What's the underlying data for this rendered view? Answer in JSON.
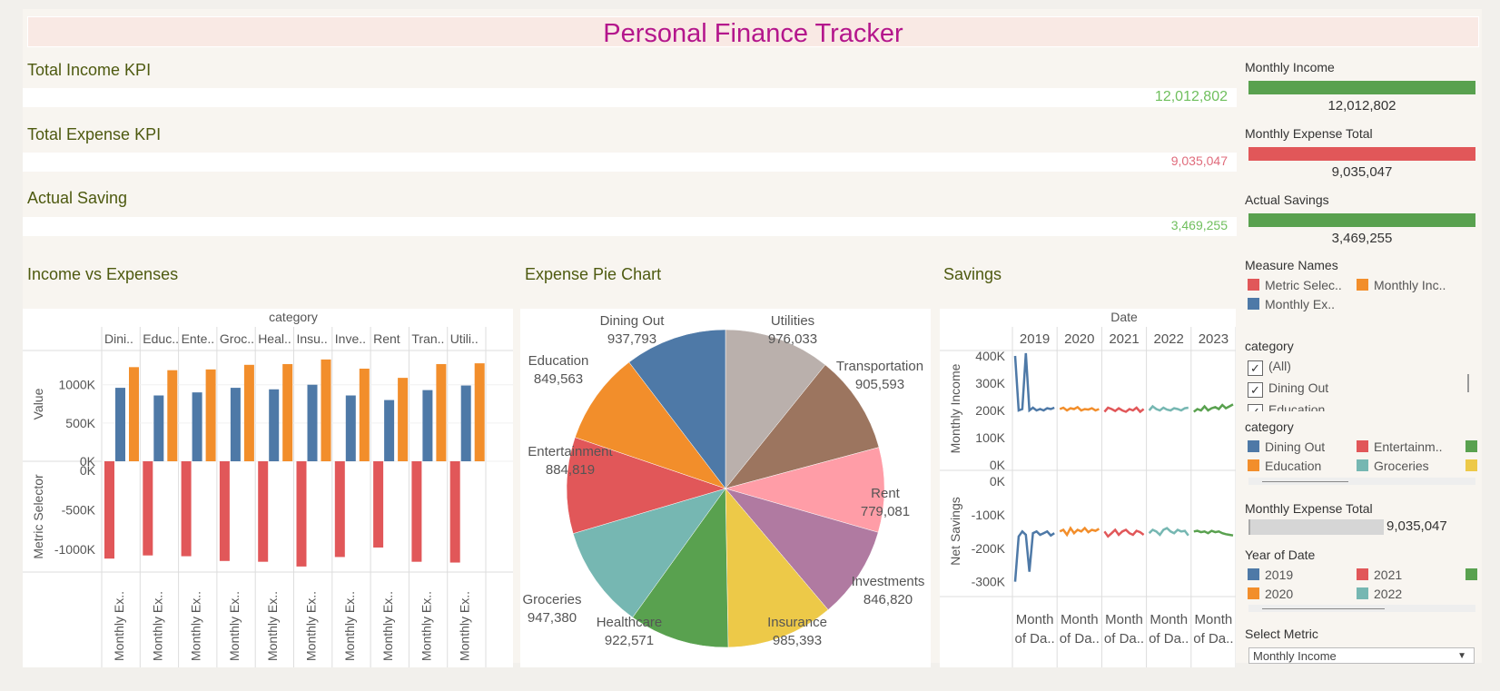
{
  "title": "Personal Finance Tracker",
  "kpis": [
    {
      "label": "Total Income KPI",
      "value": "12,012,802",
      "color": "#6fbf5d"
    },
    {
      "label": "Total Expense KPI",
      "value": "9,035,047",
      "color": "#e06c7c"
    },
    {
      "label": "Actual Saving",
      "value": "3,469,255",
      "color": "#6fbf5d"
    }
  ],
  "sections": {
    "income_vs_expenses": "Income vs Expenses",
    "expense_pie": "Expense Pie Chart",
    "savings": "Savings"
  },
  "sidebar": {
    "monthly_income": {
      "title": "Monthly Income",
      "value": "12,012,802",
      "color": "#59a14f"
    },
    "monthly_expense": {
      "title": "Monthly Expense Total",
      "value": "9,035,047",
      "color": "#e15759"
    },
    "actual_savings": {
      "title": "Actual Savings",
      "value": "3,469,255",
      "color": "#59a14f"
    },
    "measure_names": {
      "title": "Measure Names",
      "items": [
        {
          "label": "Metric Selec..",
          "color": "#e15759"
        },
        {
          "label": "Monthly Inc..",
          "color": "#f28e2b"
        },
        {
          "label": "Monthly Ex..",
          "color": "#4e79a7"
        }
      ]
    },
    "category_filter": {
      "title": "category",
      "items": [
        "(All)",
        "Dining Out",
        "Education"
      ]
    },
    "category_legend": {
      "title": "category",
      "items": [
        {
          "label": "Dining Out",
          "color": "#4e79a7"
        },
        {
          "label": "Entertainm..",
          "color": "#e15759"
        },
        {
          "label": "",
          "color": "#59a14f"
        },
        {
          "label": "Education",
          "color": "#f28e2b"
        },
        {
          "label": "Groceries",
          "color": "#76b7b2"
        },
        {
          "label": "",
          "color": "#edc948"
        }
      ]
    },
    "expense_slider": {
      "title": "Monthly Expense Total",
      "value": "9,035,047"
    },
    "year_legend": {
      "title": "Year of Date",
      "items": [
        {
          "label": "2019",
          "color": "#4e79a7"
        },
        {
          "label": "2021",
          "color": "#e15759"
        },
        {
          "label": "",
          "color": "#59a14f"
        },
        {
          "label": "2020",
          "color": "#f28e2b"
        },
        {
          "label": "2022",
          "color": "#76b7b2"
        }
      ]
    },
    "select_metric": {
      "title": "Select Metric",
      "value": "Monthly Income"
    }
  },
  "chart_data": [
    {
      "type": "bar",
      "title": "Income vs Expenses",
      "column_header": "category",
      "categories": [
        "Dini..",
        "Educ..",
        "Ente..",
        "Groc..",
        "Heal..",
        "Insu..",
        "Inve..",
        "Rent",
        "Tran..",
        "Utili.."
      ],
      "x_labels": [
        "Monthly Ex..",
        "Monthly Ex..",
        "Monthly Ex..",
        "Monthly Ex..",
        "Monthly Ex..",
        "Monthly Ex..",
        "Monthly Ex..",
        "Monthly Ex..",
        "Monthly Ex..",
        "Monthly Ex.."
      ],
      "top": {
        "ylabel": "Value",
        "yticks": [
          "1000K",
          "500K",
          "0K"
        ],
        "ylim": [
          0,
          1400000
        ],
        "series": [
          {
            "name": "Monthly Ex..",
            "color": "#4e79a7",
            "values": [
              960000,
              860000,
              900000,
              960000,
              940000,
              1000000,
              860000,
              800000,
              930000,
              990000
            ]
          },
          {
            "name": "Monthly Inc..",
            "color": "#f28e2b",
            "values": [
              1230000,
              1190000,
              1200000,
              1260000,
              1270000,
              1330000,
              1210000,
              1090000,
              1270000,
              1280000
            ]
          }
        ]
      },
      "bottom": {
        "ylabel": "Metric Selector",
        "yticks": [
          "0K",
          "-500K",
          "-1000K"
        ],
        "ylim": [
          -1400000,
          0
        ],
        "series": [
          {
            "name": "Metric Selec..",
            "color": "#e15759",
            "values": [
              -1230000,
              -1190000,
              -1200000,
              -1260000,
              -1270000,
              -1330000,
              -1210000,
              -1090000,
              -1270000,
              -1280000
            ]
          }
        ]
      }
    },
    {
      "type": "pie",
      "title": "Expense Pie Chart",
      "slices": [
        {
          "label": "Utilities",
          "value": 976033,
          "display": "976,033",
          "color": "#bab0ac"
        },
        {
          "label": "Transportation",
          "value": 905593,
          "display": "905,593",
          "color": "#9c755f"
        },
        {
          "label": "Rent",
          "value": 779081,
          "display": "779,081",
          "color": "#ff9da7"
        },
        {
          "label": "Investments",
          "value": 846820,
          "display": "846,820",
          "color": "#b07aa1"
        },
        {
          "label": "Insurance",
          "value": 985393,
          "display": "985,393",
          "color": "#edc948"
        },
        {
          "label": "Healthcare",
          "value": 922571,
          "display": "922,571",
          "color": "#59a14f"
        },
        {
          "label": "Groceries",
          "value": 947380,
          "display": "947,380",
          "color": "#76b7b2"
        },
        {
          "label": "Entertainment",
          "value": 884819,
          "display": "884,819",
          "color": "#e15759"
        },
        {
          "label": "Education",
          "value": 849563,
          "display": "849,563",
          "color": "#f28e2b"
        },
        {
          "label": "Dining Out",
          "value": 937793,
          "display": "937,793",
          "color": "#4e79a7"
        }
      ]
    },
    {
      "type": "line",
      "title": "Savings",
      "column_header": "Date",
      "years": [
        "2019",
        "2020",
        "2021",
        "2022",
        "2023"
      ],
      "colors": [
        "#4e79a7",
        "#f28e2b",
        "#e15759",
        "#76b7b2",
        "#59a14f"
      ],
      "x_label": "Month of Da..",
      "income": {
        "ylabel": "Monthly Income",
        "yticks": [
          "400K",
          "300K",
          "200K",
          "100K",
          "0K"
        ],
        "ylim": [
          0,
          400000
        ],
        "series": [
          [
            400000,
            200000,
            205000,
            410000,
            200000,
            210000,
            200000,
            205000,
            200000,
            208000,
            205000,
            210000
          ],
          [
            205000,
            210000,
            200000,
            208000,
            205000,
            212000,
            200000,
            205000,
            203000,
            208000,
            200000,
            205000
          ],
          [
            195000,
            210000,
            205000,
            198000,
            208000,
            200000,
            195000,
            205000,
            200000,
            210000,
            195000,
            205000
          ],
          [
            200000,
            215000,
            205000,
            200000,
            210000,
            203000,
            200000,
            208000,
            205000,
            200000,
            208000,
            210000
          ],
          [
            195000,
            205000,
            200000,
            215000,
            200000,
            208000,
            212000,
            205000,
            220000,
            208000,
            215000,
            222000
          ]
        ]
      },
      "savings": {
        "ylabel": "Net Savings",
        "yticks": [
          "0K",
          "-100K",
          "-200K",
          "-300K"
        ],
        "ylim": [
          -320000,
          0
        ],
        "series": [
          [
            -300000,
            -165000,
            -150000,
            -160000,
            -270000,
            -155000,
            -150000,
            -160000,
            -155000,
            -150000,
            -162000,
            -155000
          ],
          [
            -150000,
            -145000,
            -160000,
            -140000,
            -155000,
            -145000,
            -150000,
            -140000,
            -152000,
            -145000,
            -148000,
            -142000
          ],
          [
            -150000,
            -165000,
            -155000,
            -145000,
            -160000,
            -150000,
            -145000,
            -155000,
            -160000,
            -148000,
            -152000,
            -160000
          ],
          [
            -155000,
            -145000,
            -150000,
            -160000,
            -145000,
            -140000,
            -150000,
            -155000,
            -145000,
            -150000,
            -148000,
            -162000
          ],
          [
            -150000,
            -148000,
            -152000,
            -150000,
            -155000,
            -148000,
            -152000,
            -150000,
            -155000,
            -158000,
            -160000,
            -162000
          ]
        ]
      }
    }
  ]
}
